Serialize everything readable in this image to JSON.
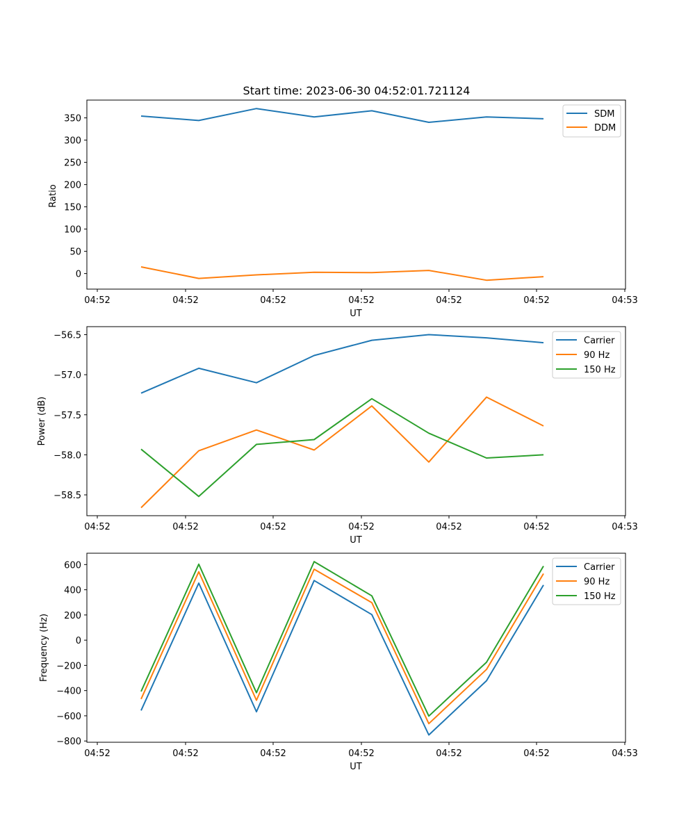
{
  "chart_data": [
    {
      "type": "line",
      "title": "Start time: 2023-06-30 04:52:01.721124",
      "xlabel": "UT",
      "ylabel": "Ratio",
      "x_tick_labels": [
        "04:52",
        "04:52",
        "04:52",
        "04:52",
        "04:52",
        "04:52",
        "04:52",
        "04:53"
      ],
      "y_ticks": [
        0,
        50,
        100,
        150,
        200,
        250,
        300,
        350
      ],
      "ylim": [
        -35,
        390
      ],
      "legend": "top-right",
      "series": [
        {
          "name": "SDM",
          "color": "#1f77b4",
          "values": [
            354,
            344,
            371,
            352,
            366,
            340,
            352,
            348
          ]
        },
        {
          "name": "DDM",
          "color": "#ff7f0e",
          "values": [
            15,
            -11,
            -3,
            3,
            2,
            7,
            -15,
            -7
          ]
        }
      ]
    },
    {
      "type": "line",
      "title": "",
      "xlabel": "UT",
      "ylabel": "Power (dB)",
      "x_tick_labels": [
        "04:52",
        "04:52",
        "04:52",
        "04:52",
        "04:52",
        "04:52",
        "04:52",
        "04:53"
      ],
      "y_ticks": [
        -58.5,
        -58.0,
        -57.5,
        -57.0,
        -56.5
      ],
      "y_tick_labels": [
        "−58.5",
        "−58.0",
        "−57.5",
        "−57.0",
        "−56.5"
      ],
      "ylim": [
        -58.76,
        -56.4
      ],
      "legend": "top-right",
      "series": [
        {
          "name": "Carrier",
          "color": "#1f77b4",
          "values": [
            -57.23,
            -56.92,
            -57.1,
            -56.76,
            -56.57,
            -56.5,
            -56.54,
            -56.6
          ]
        },
        {
          "name": "90 Hz",
          "color": "#ff7f0e",
          "values": [
            -58.66,
            -57.95,
            -57.69,
            -57.94,
            -57.39,
            -58.09,
            -57.28,
            -57.64
          ]
        },
        {
          "name": "150 Hz",
          "color": "#2ca02c",
          "values": [
            -57.93,
            -58.52,
            -57.87,
            -57.81,
            -57.3,
            -57.73,
            -58.04,
            -58.0
          ]
        }
      ]
    },
    {
      "type": "line",
      "title": "",
      "xlabel": "UT",
      "ylabel": "Frequency (Hz)",
      "x_tick_labels": [
        "04:52",
        "04:52",
        "04:52",
        "04:52",
        "04:52",
        "04:52",
        "04:52",
        "04:53"
      ],
      "y_ticks": [
        -800,
        -600,
        -400,
        -200,
        0,
        200,
        400,
        600
      ],
      "y_tick_labels": [
        "−800",
        "−600",
        "−400",
        "−200",
        "0",
        "200",
        "400",
        "600"
      ],
      "ylim": [
        -810,
        690
      ],
      "legend": "top-right",
      "series": [
        {
          "name": "Carrier",
          "color": "#1f77b4",
          "values": [
            -558,
            453,
            -568,
            473,
            203,
            -752,
            -322,
            438
          ]
        },
        {
          "name": "90 Hz",
          "color": "#ff7f0e",
          "values": [
            -467,
            543,
            -477,
            563,
            298,
            -662,
            -232,
            528
          ]
        },
        {
          "name": "150 Hz",
          "color": "#2ca02c",
          "values": [
            -407,
            603,
            -417,
            623,
            352,
            -602,
            -175,
            588
          ]
        }
      ]
    }
  ]
}
